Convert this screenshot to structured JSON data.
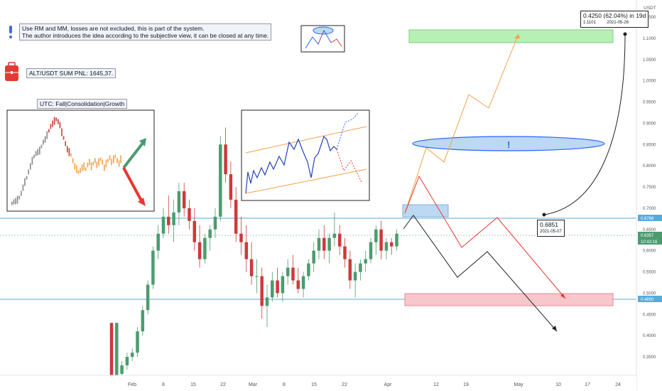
{
  "header": {
    "currency_label": "USDT"
  },
  "notes": {
    "line1": "Use RM and MM, losses are not excluded, this is part of the system.",
    "line2": "The author introduces the idea according to the subjective view, it can be closed at any time.",
    "pnl": "ALT/USDT SUM PNL: 1645,37.",
    "utc": "UTC: Fall|Consolidation|Growth",
    "target_label": "0.4250 (62.04%) in 19d",
    "target_sub_price": "1.1101",
    "target_sub_date": "2021-05-26",
    "start_label_price": "0.6851",
    "start_label_date": "2021-05-07",
    "exclamation": "!"
  },
  "colors": {
    "up": "#4c9b6e",
    "down": "#c93b3b",
    "orange_path": "#f5a04a",
    "red_path": "#e8372f",
    "black_path": "#222222",
    "level_line": "#5aa9d6",
    "green_zone": "#b7f0b5",
    "red_zone": "#f8c7cc",
    "blue_zone": "#bcd8f2"
  },
  "chart_data": {
    "type": "candlestick",
    "y_ticks": [
      "1.1500",
      "1.1000",
      "1.0500",
      "1.0000",
      "0.9500",
      "0.9000",
      "0.8500",
      "0.8000",
      "0.7500",
      "0.7000",
      "0.6500",
      "0.6000",
      "0.5500",
      "0.5000",
      "0.4500",
      "0.4000",
      "0.3500"
    ],
    "x_ticks": [
      "Feb",
      "8",
      "15",
      "22",
      "Mar",
      "8",
      "15",
      "22",
      "Apr",
      "12",
      "19",
      "May",
      "10",
      "17",
      "24"
    ],
    "price_labels": [
      {
        "value": "0.6766",
        "bg": "#5aa9d6"
      },
      {
        "value": "0.6357",
        "bg": "#4c9b6e"
      },
      {
        "value": "10:43:16",
        "bg": "#4c9b6e"
      },
      {
        "value": "0.4850",
        "bg": "#5aa9d6"
      }
    ],
    "levels": [
      0.6766,
      0.485
    ],
    "candles": [
      [
        0.43,
        0.43,
        0.3,
        0.3
      ],
      [
        0.3,
        0.43,
        0.29,
        0.43
      ],
      [
        0.31,
        0.34,
        0.29,
        0.33
      ],
      [
        0.33,
        0.36,
        0.32,
        0.35
      ],
      [
        0.35,
        0.37,
        0.34,
        0.36
      ],
      [
        0.36,
        0.42,
        0.35,
        0.41
      ],
      [
        0.41,
        0.47,
        0.4,
        0.46
      ],
      [
        0.46,
        0.53,
        0.45,
        0.52
      ],
      [
        0.52,
        0.61,
        0.51,
        0.6
      ],
      [
        0.6,
        0.66,
        0.58,
        0.64
      ],
      [
        0.64,
        0.7,
        0.63,
        0.68
      ],
      [
        0.68,
        0.73,
        0.64,
        0.66
      ],
      [
        0.66,
        0.72,
        0.62,
        0.69
      ],
      [
        0.69,
        0.76,
        0.66,
        0.74
      ],
      [
        0.74,
        0.76,
        0.68,
        0.7
      ],
      [
        0.7,
        0.72,
        0.65,
        0.67
      ],
      [
        0.67,
        0.7,
        0.6,
        0.62
      ],
      [
        0.62,
        0.66,
        0.56,
        0.58
      ],
      [
        0.58,
        0.64,
        0.57,
        0.63
      ],
      [
        0.63,
        0.66,
        0.6,
        0.65
      ],
      [
        0.65,
        0.7,
        0.63,
        0.68
      ],
      [
        0.68,
        0.87,
        0.67,
        0.85
      ],
      [
        0.85,
        0.89,
        0.76,
        0.78
      ],
      [
        0.78,
        0.81,
        0.7,
        0.72
      ],
      [
        0.72,
        0.75,
        0.62,
        0.64
      ],
      [
        0.64,
        0.68,
        0.59,
        0.62
      ],
      [
        0.62,
        0.66,
        0.55,
        0.58
      ],
      [
        0.58,
        0.62,
        0.52,
        0.54
      ],
      [
        0.54,
        0.58,
        0.5,
        0.54
      ],
      [
        0.54,
        0.56,
        0.44,
        0.47
      ],
      [
        0.47,
        0.52,
        0.42,
        0.49
      ],
      [
        0.49,
        0.55,
        0.48,
        0.53
      ],
      [
        0.53,
        0.56,
        0.49,
        0.5
      ],
      [
        0.5,
        0.55,
        0.48,
        0.54
      ],
      [
        0.54,
        0.58,
        0.52,
        0.56
      ],
      [
        0.56,
        0.59,
        0.52,
        0.53
      ],
      [
        0.53,
        0.56,
        0.5,
        0.51
      ],
      [
        0.51,
        0.55,
        0.49,
        0.54
      ],
      [
        0.54,
        0.58,
        0.53,
        0.57
      ],
      [
        0.57,
        0.62,
        0.55,
        0.6
      ],
      [
        0.6,
        0.65,
        0.58,
        0.63
      ],
      [
        0.63,
        0.66,
        0.58,
        0.6
      ],
      [
        0.6,
        0.64,
        0.57,
        0.63
      ],
      [
        0.63,
        0.69,
        0.61,
        0.64
      ],
      [
        0.64,
        0.66,
        0.59,
        0.61
      ],
      [
        0.61,
        0.63,
        0.56,
        0.58
      ],
      [
        0.58,
        0.6,
        0.51,
        0.53
      ],
      [
        0.53,
        0.57,
        0.49,
        0.55
      ],
      [
        0.55,
        0.58,
        0.53,
        0.57
      ],
      [
        0.57,
        0.6,
        0.55,
        0.58
      ],
      [
        0.58,
        0.63,
        0.57,
        0.62
      ],
      [
        0.62,
        0.66,
        0.59,
        0.65
      ],
      [
        0.65,
        0.67,
        0.58,
        0.6
      ],
      [
        0.6,
        0.63,
        0.58,
        0.62
      ],
      [
        0.62,
        0.63,
        0.59,
        0.61
      ],
      [
        0.61,
        0.65,
        0.6,
        0.64
      ]
    ]
  }
}
